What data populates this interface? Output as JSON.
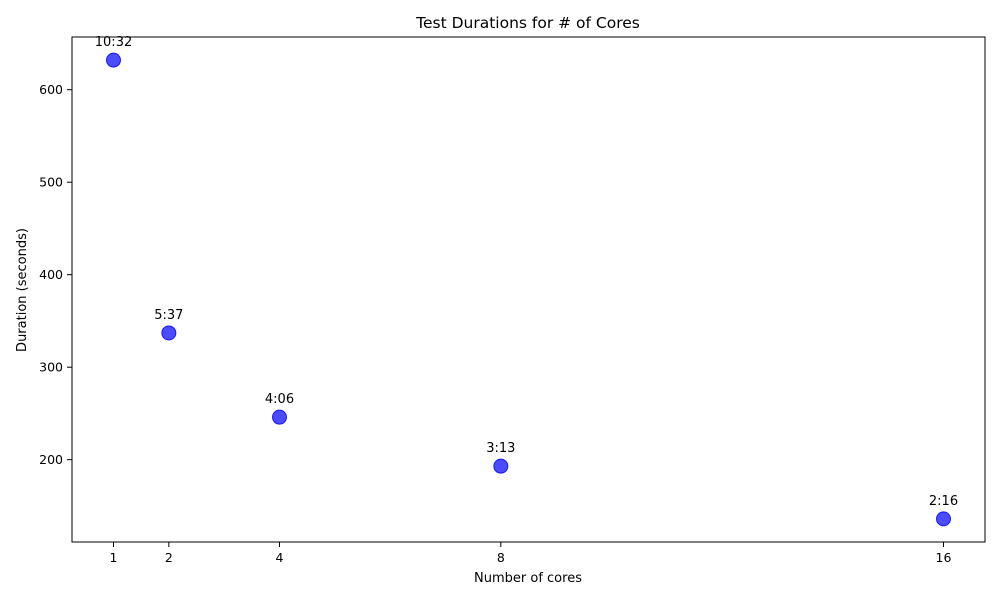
{
  "chart_data": {
    "type": "scatter",
    "title": "Test Durations for # of Cores",
    "xlabel": "Number of cores",
    "ylabel": "Duration (seconds)",
    "x": [
      1,
      2,
      4,
      8,
      16
    ],
    "y": [
      632,
      337,
      246,
      193,
      136
    ],
    "point_labels": [
      "10:32",
      "5:37",
      "4:06",
      "3:13",
      "2:16"
    ],
    "xticks": [
      1,
      2,
      4,
      8,
      16
    ],
    "yticks": [
      200,
      300,
      400,
      500,
      600
    ],
    "xlim": [
      0.25,
      16.75
    ],
    "ylim": [
      111,
      657
    ],
    "grid": false,
    "marker_color": "#0000ff",
    "marker_alpha": 0.7
  }
}
